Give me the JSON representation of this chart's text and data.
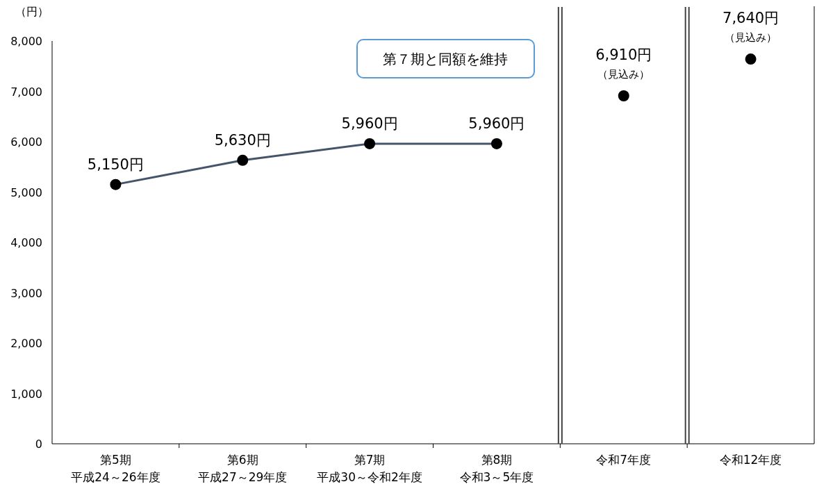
{
  "chart_data": {
    "type": "line",
    "ylabel": "（円）",
    "categories": [
      "第5期平成24～26年度",
      "第6期平成27～29年度",
      "第7期平成30～令和2年度",
      "第8期令和3～5年度",
      "令和7年度",
      "令和12年度"
    ],
    "series": [
      {
        "type": "line",
        "color": "#44546a",
        "values": [
          5150,
          5630,
          5960,
          5960,
          null,
          null
        ],
        "value_labels": [
          "5,150円",
          "5,630円",
          "5,960円",
          "5,960円",
          null,
          null
        ]
      },
      {
        "type": "scatter",
        "color": "#000000",
        "values": [
          null,
          null,
          null,
          null,
          6910,
          7640
        ],
        "value_labels": [
          null,
          null,
          null,
          null,
          "6,910円（見込み）",
          "7,640円（見込み）"
        ]
      }
    ],
    "ylim": [
      0,
      8000
    ],
    "yticks": [
      {
        "value": 0,
        "label": "0"
      },
      {
        "value": 1000,
        "label": "1,000"
      },
      {
        "value": 2000,
        "label": "2,000"
      },
      {
        "value": 3000,
        "label": "3,000"
      },
      {
        "value": 4000,
        "label": "4,000"
      },
      {
        "value": 5000,
        "label": "5,000"
      },
      {
        "value": 6000,
        "label": "6,000"
      },
      {
        "value": 7000,
        "label": "7,000"
      },
      {
        "value": 8000,
        "label": "8,000"
      }
    ],
    "annotations": [
      "第７期と同額を維持"
    ],
    "marker": "circle",
    "grid": false
  }
}
